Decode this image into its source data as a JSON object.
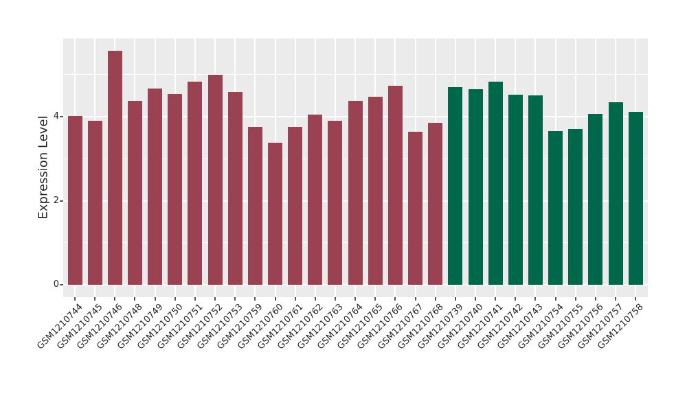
{
  "chart_data": {
    "type": "bar",
    "title": "",
    "ylabel": "Expression Level",
    "xlabel": "",
    "ylim": [
      0,
      5.86
    ],
    "yticks": [
      0,
      2,
      4
    ],
    "minor_yticks": [
      1,
      3,
      5
    ],
    "grid": "horizontal major+minor white lines and vertical white line at each category center, on gray panel",
    "legend_position": "none",
    "x_tick_rotation_degrees": 45,
    "groups": [
      {
        "name": "left-group",
        "color": "#9a4152",
        "bar_count": 19
      },
      {
        "name": "right-group",
        "color": "#00684a",
        "bar_count": 10
      }
    ],
    "bars": [
      {
        "label": "GSM1210744",
        "value": 4.01,
        "group": 0
      },
      {
        "label": "GSM1210745",
        "value": 3.91,
        "group": 0
      },
      {
        "label": "GSM1210746",
        "value": 5.57,
        "group": 0
      },
      {
        "label": "GSM1210748",
        "value": 4.38,
        "group": 0
      },
      {
        "label": "GSM1210749",
        "value": 4.67,
        "group": 0
      },
      {
        "label": "GSM1210750",
        "value": 4.54,
        "group": 0
      },
      {
        "label": "GSM1210751",
        "value": 4.84,
        "group": 0
      },
      {
        "label": "GSM1210752",
        "value": 5.0,
        "group": 0
      },
      {
        "label": "GSM1210753",
        "value": 4.58,
        "group": 0
      },
      {
        "label": "GSM1210759",
        "value": 3.76,
        "group": 0
      },
      {
        "label": "GSM1210760",
        "value": 3.38,
        "group": 0
      },
      {
        "label": "GSM1210761",
        "value": 3.76,
        "group": 0
      },
      {
        "label": "GSM1210762",
        "value": 4.05,
        "group": 0
      },
      {
        "label": "GSM1210763",
        "value": 3.9,
        "group": 0
      },
      {
        "label": "GSM1210764",
        "value": 4.37,
        "group": 0
      },
      {
        "label": "GSM1210765",
        "value": 4.48,
        "group": 0
      },
      {
        "label": "GSM1210766",
        "value": 4.73,
        "group": 0
      },
      {
        "label": "GSM1210767",
        "value": 3.64,
        "group": 0
      },
      {
        "label": "GSM1210768",
        "value": 3.85,
        "group": 0
      },
      {
        "label": "GSM1210739",
        "value": 4.71,
        "group": 1
      },
      {
        "label": "GSM1210740",
        "value": 4.66,
        "group": 1
      },
      {
        "label": "GSM1210741",
        "value": 4.84,
        "group": 1
      },
      {
        "label": "GSM1210742",
        "value": 4.52,
        "group": 1
      },
      {
        "label": "GSM1210743",
        "value": 4.5,
        "group": 1
      },
      {
        "label": "GSM1210754",
        "value": 3.66,
        "group": 1
      },
      {
        "label": "GSM1210755",
        "value": 3.71,
        "group": 1
      },
      {
        "label": "GSM1210756",
        "value": 4.07,
        "group": 1
      },
      {
        "label": "GSM1210757",
        "value": 4.34,
        "group": 1
      },
      {
        "label": "GSM1210758",
        "value": 4.11,
        "group": 1
      }
    ]
  },
  "colors": {
    "figure_background": "#ffffff",
    "panel_background": "#ebebeb",
    "gridline": "#ffffff",
    "bar_red": "#9a4152",
    "bar_green": "#00684a",
    "tick_text": "#262626",
    "tick_mark": "#555555"
  }
}
